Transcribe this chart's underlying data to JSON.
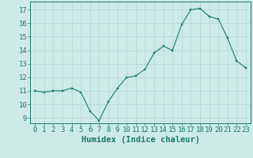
{
  "x": [
    0,
    1,
    2,
    3,
    4,
    5,
    6,
    7,
    8,
    9,
    10,
    11,
    12,
    13,
    14,
    15,
    16,
    17,
    18,
    19,
    20,
    21,
    22,
    23
  ],
  "y": [
    11.0,
    10.9,
    11.0,
    11.0,
    11.2,
    10.9,
    9.5,
    8.8,
    10.2,
    11.2,
    12.0,
    12.1,
    12.6,
    13.8,
    14.3,
    14.0,
    15.9,
    17.0,
    17.1,
    16.5,
    16.3,
    14.9,
    13.2,
    12.7
  ],
  "xlabel": "Humidex (Indice chaleur)",
  "xlim": [
    -0.5,
    23.5
  ],
  "ylim": [
    8.6,
    17.6
  ],
  "yticks": [
    9,
    10,
    11,
    12,
    13,
    14,
    15,
    16,
    17
  ],
  "xticks": [
    0,
    1,
    2,
    3,
    4,
    5,
    6,
    7,
    8,
    9,
    10,
    11,
    12,
    13,
    14,
    15,
    16,
    17,
    18,
    19,
    20,
    21,
    22,
    23
  ],
  "bg_color": "#ceeae7",
  "grid_color": "#b8d8d5",
  "line_color": "#1a7a6e",
  "marker_color": "#1a7a6e",
  "tick_label_color": "#1a7a6e",
  "xlabel_color": "#1a7a6e",
  "axis_color": "#1a7a6e",
  "font_size_ticks": 6.5,
  "font_size_xlabel": 7.5
}
